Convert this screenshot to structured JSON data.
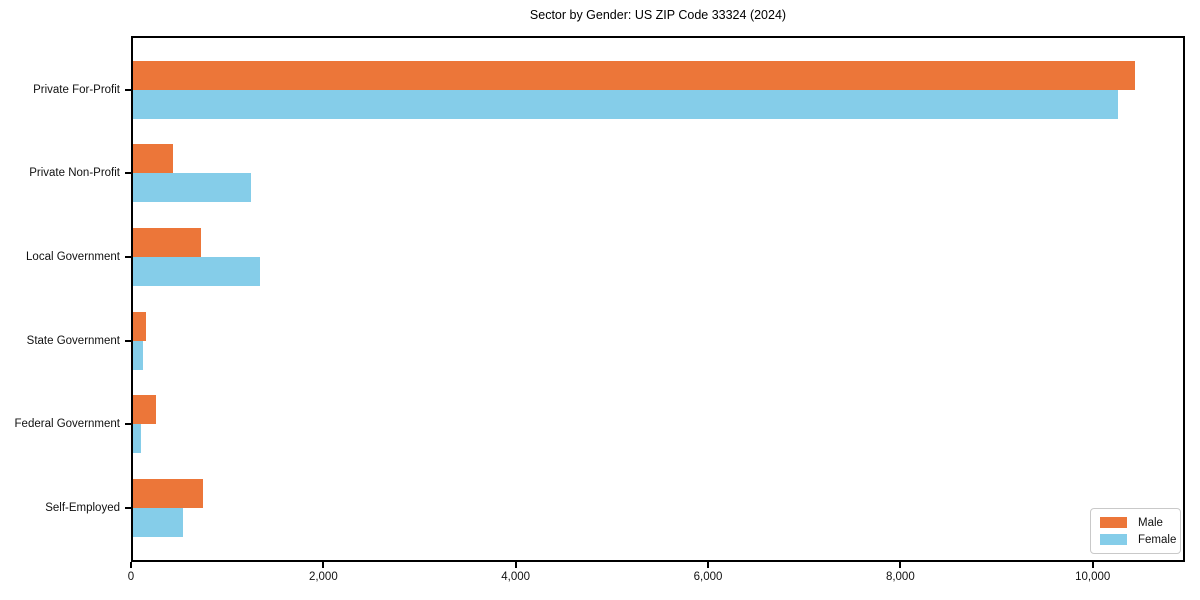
{
  "title": "Sector by Gender: US ZIP Code 33324 (2024)",
  "chart_data": {
    "type": "bar",
    "orientation": "horizontal",
    "title": "Sector by Gender: US ZIP Code 33324 (2024)",
    "categories": [
      "Private For-Profit",
      "Private Non-Profit",
      "Local Government",
      "State Government",
      "Federal Government",
      "Self-Employed"
    ],
    "series": [
      {
        "name": "Male",
        "color": "#ec7639",
        "values": [
          10440,
          435,
          725,
          155,
          255,
          745
        ]
      },
      {
        "name": "Female",
        "color": "#85cde9",
        "values": [
          10260,
          1245,
          1340,
          120,
          100,
          545
        ]
      }
    ],
    "xlabel": "",
    "ylabel": "",
    "xlim": [
      0,
      10960
    ],
    "xticks": [
      0,
      2000,
      4000,
      6000,
      8000,
      10000
    ],
    "xtick_labels": [
      "0",
      "2,000",
      "4,000",
      "6,000",
      "8,000",
      "10,000"
    ],
    "legend": {
      "position": "lower-right",
      "entries": [
        "Male",
        "Female"
      ]
    },
    "grid": false,
    "background": "#ffffff",
    "spine_color": "#000000"
  }
}
